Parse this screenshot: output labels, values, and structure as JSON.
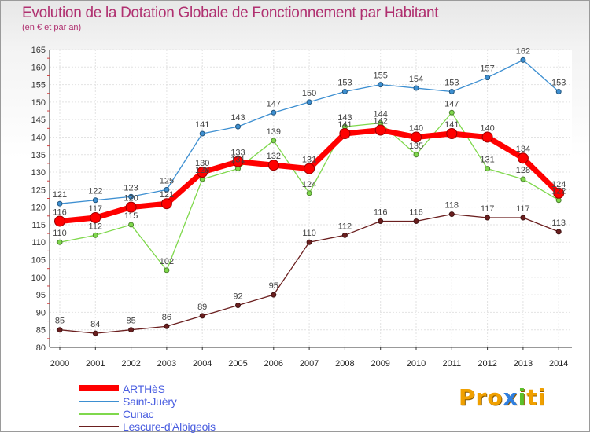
{
  "chart_data": {
    "type": "line",
    "title": "Evolution de la Dotation Globale de Fonctionnement par Habitant",
    "subtitle": "(en € et par an)",
    "xlabel": "",
    "ylabel": "",
    "ylim": [
      80,
      165
    ],
    "yticks": [
      80,
      85,
      90,
      95,
      100,
      105,
      110,
      115,
      120,
      125,
      130,
      135,
      140,
      145,
      150,
      155,
      160,
      165
    ],
    "categories": [
      "2000",
      "2001",
      "2002",
      "2003",
      "2004",
      "2005",
      "2006",
      "2007",
      "2008",
      "2009",
      "2010",
      "2011",
      "2012",
      "2013",
      "2014"
    ],
    "series": [
      {
        "name": "ARTHèS",
        "color": "#ff0000",
        "values": [
          116,
          117,
          120,
          121,
          130,
          133,
          132,
          131,
          141,
          142,
          140,
          141,
          140,
          134,
          124
        ]
      },
      {
        "name": "Saint-Juéry",
        "color": "#3d8fd1",
        "values": [
          121,
          122,
          123,
          125,
          141,
          143,
          147,
          150,
          153,
          155,
          154,
          153,
          157,
          162,
          153
        ]
      },
      {
        "name": "Cunac",
        "color": "#7fd84c",
        "values": [
          110,
          112,
          115,
          102,
          128,
          131,
          139,
          124,
          143,
          144,
          135,
          147,
          131,
          128,
          122
        ]
      },
      {
        "name": "Lescure-d'Albigeois",
        "color": "#6b1f1f",
        "values": [
          85,
          84,
          85,
          86,
          89,
          92,
          95,
          110,
          112,
          116,
          116,
          118,
          117,
          117,
          113
        ]
      }
    ]
  },
  "logo": {
    "text": "Proxiti",
    "letters": [
      "P",
      "r",
      "o",
      "x",
      "i",
      "t",
      "i"
    ],
    "colors": [
      "#f0a000",
      "#f0a000",
      "#f0a000",
      "#2f7fe0",
      "#5cc02c",
      "#f0a000",
      "#f0a000"
    ]
  }
}
